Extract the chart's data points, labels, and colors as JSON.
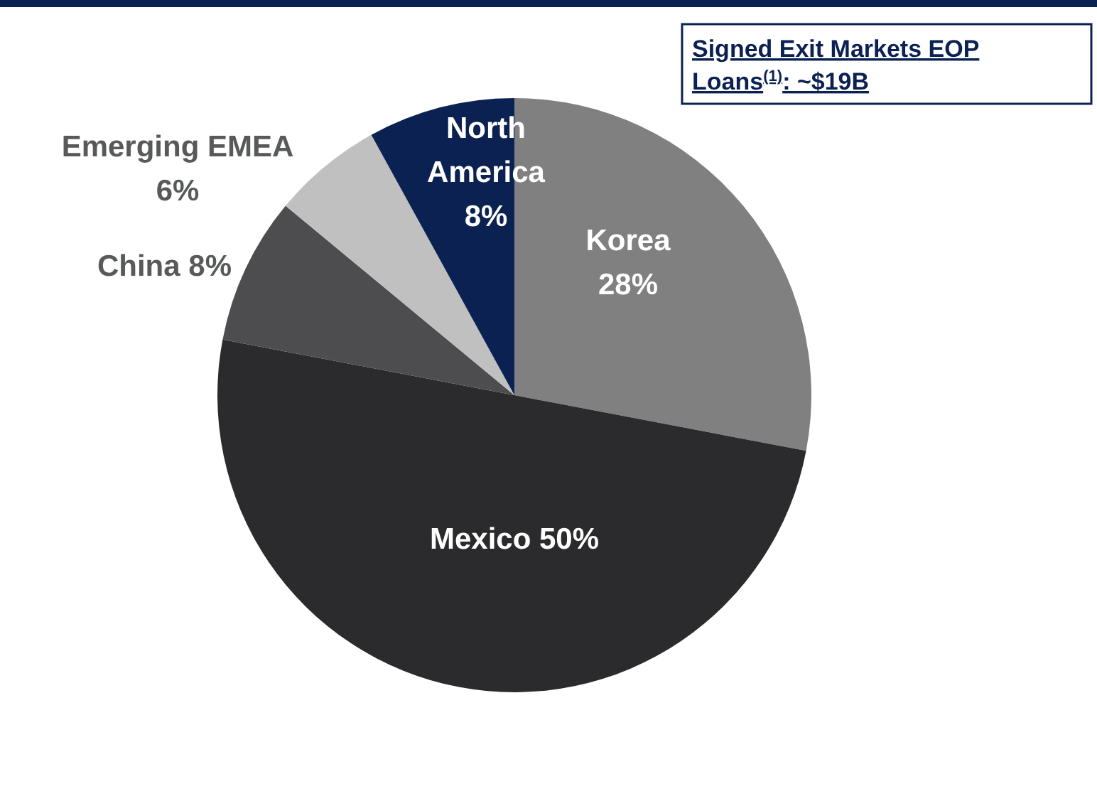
{
  "chart_data": {
    "type": "pie",
    "title": "Signed Exit Markets EOP\nLoans$^{(1)}$:  ~$19B",
    "categories": [
      "Korea",
      "Mexico",
      "China",
      "Emerging EMEA",
      "North America"
    ],
    "values": [
      28,
      50,
      8,
      6,
      8
    ],
    "value_labels": [
      "28%",
      "50%",
      "8%",
      "6%",
      "8%"
    ],
    "colors": [
      "#808080",
      "#2b2b2d",
      "#4d4d4f",
      "#c0c0c0",
      "#0a2152"
    ],
    "data_labels": true
  }
}
